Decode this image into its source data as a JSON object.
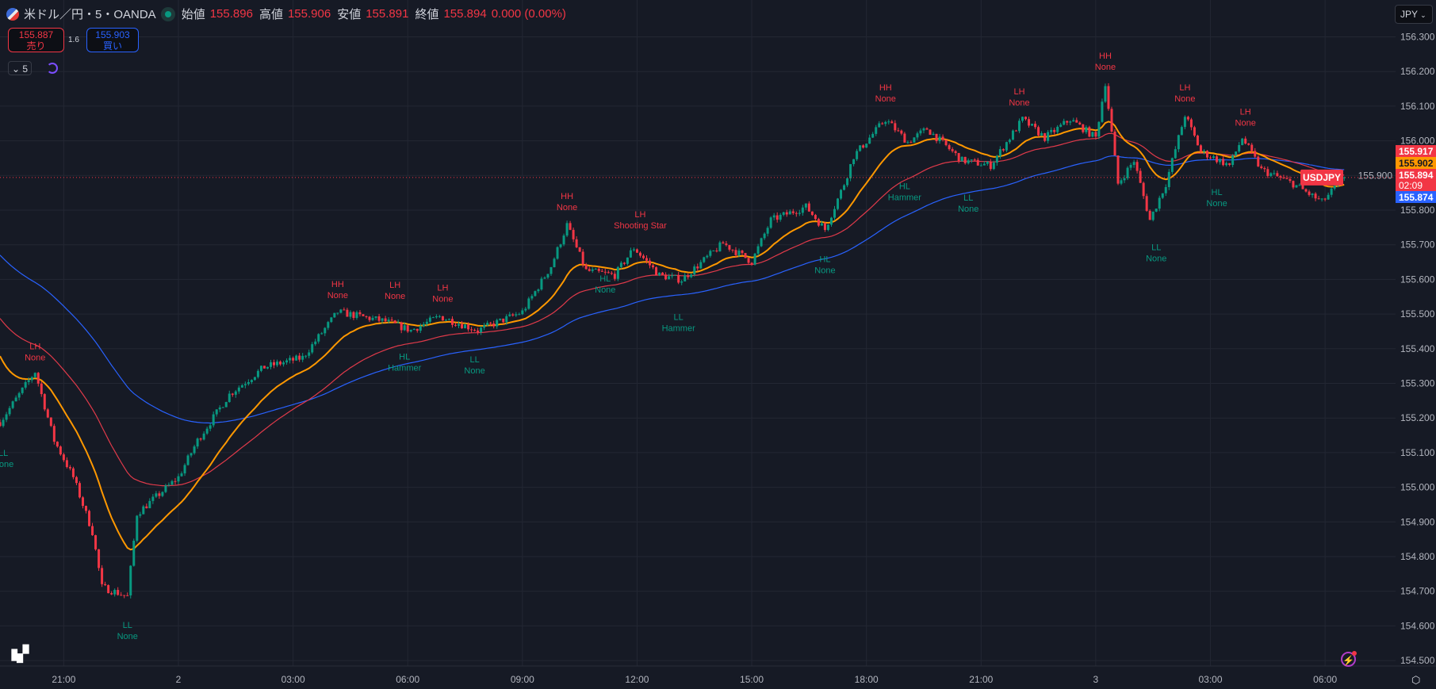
{
  "header": {
    "symbol": "米ドル／円・5・OANDA",
    "open_label": "始値",
    "open": "155.896",
    "high_label": "高値",
    "high": "155.906",
    "low_label": "安値",
    "low": "155.891",
    "close_label": "終値",
    "close": "155.894",
    "change": "0.000 (0.00%)"
  },
  "trade": {
    "sell_price": "155.887",
    "sell_label": "売り",
    "spread": "1.6",
    "buy_price": "155.903",
    "buy_label": "買い"
  },
  "timeframe": "5",
  "currency": "JPY",
  "logo": "TV",
  "colors": {
    "up": "#089981",
    "down": "#f23645",
    "ema_fast": "#ff9800",
    "ema_mid": "#e03a4a",
    "ema_slow": "#2962ff",
    "bg": "#161a25",
    "grid": "#232733"
  },
  "chart_data": {
    "type": "candlestick",
    "symbol": "USDJPY",
    "interval_minutes": 5,
    "ylim": [
      154.5,
      156.3
    ],
    "y_ticks": [
      154.5,
      154.6,
      154.7,
      154.8,
      154.9,
      155.0,
      155.1,
      155.2,
      155.3,
      155.4,
      155.5,
      155.6,
      155.7,
      155.8,
      155.9,
      156.0,
      156.1,
      156.2,
      156.3
    ],
    "x_ticks": [
      {
        "bar": -36,
        "label": "21:00"
      },
      {
        "bar": 0,
        "label": "2"
      },
      {
        "bar": 36,
        "label": "03:00"
      },
      {
        "bar": 72,
        "label": "06:00"
      },
      {
        "bar": 108,
        "label": "09:00"
      },
      {
        "bar": 144,
        "label": "12:00"
      },
      {
        "bar": 180,
        "label": "15:00"
      },
      {
        "bar": 216,
        "label": "18:00"
      },
      {
        "bar": 252,
        "label": "21:00"
      },
      {
        "bar": 288,
        "label": "3"
      },
      {
        "bar": 324,
        "label": "03:00"
      },
      {
        "bar": 360,
        "label": "06:00"
      }
    ],
    "bar_range": [
      -56,
      366
    ],
    "close_path": [
      [
        -56,
        155.188
      ],
      [
        -45,
        155.334
      ],
      [
        -39,
        155.135
      ],
      [
        -33,
        155.029
      ],
      [
        -27,
        154.871
      ],
      [
        -24,
        154.712
      ],
      [
        -16,
        154.685
      ],
      [
        -13,
        154.924
      ],
      [
        0,
        155.029
      ],
      [
        6,
        155.135
      ],
      [
        16,
        155.268
      ],
      [
        27,
        155.347
      ],
      [
        39,
        155.374
      ],
      [
        50,
        155.506
      ],
      [
        65,
        155.479
      ],
      [
        73,
        155.453
      ],
      [
        82,
        155.493
      ],
      [
        94,
        155.453
      ],
      [
        108,
        155.506
      ],
      [
        117,
        155.638
      ],
      [
        122,
        155.757
      ],
      [
        128,
        155.625
      ],
      [
        137,
        155.612
      ],
      [
        143,
        155.691
      ],
      [
        151,
        155.612
      ],
      [
        158,
        155.599
      ],
      [
        171,
        155.704
      ],
      [
        180,
        155.651
      ],
      [
        186,
        155.771
      ],
      [
        197,
        155.81
      ],
      [
        203,
        155.744
      ],
      [
        209,
        155.876
      ],
      [
        212,
        155.956
      ],
      [
        222,
        156.062
      ],
      [
        229,
        155.996
      ],
      [
        235,
        156.035
      ],
      [
        246,
        155.943
      ],
      [
        255,
        155.929
      ],
      [
        265,
        156.062
      ],
      [
        272,
        156.009
      ],
      [
        280,
        156.062
      ],
      [
        288,
        156.009
      ],
      [
        291,
        156.168
      ],
      [
        295,
        155.876
      ],
      [
        300,
        155.943
      ],
      [
        305,
        155.771
      ],
      [
        310,
        155.876
      ],
      [
        316,
        156.075
      ],
      [
        321,
        155.969
      ],
      [
        330,
        155.929
      ],
      [
        334,
        156.009
      ],
      [
        340,
        155.916
      ],
      [
        350,
        155.876
      ],
      [
        359,
        155.823
      ],
      [
        366,
        155.894
      ]
    ],
    "moving_averages": [
      {
        "name": "fast",
        "period": 20,
        "start": 155.4,
        "last": "155.902"
      },
      {
        "name": "mid",
        "period": 50,
        "start": 155.5,
        "last": "155.917"
      },
      {
        "name": "slow",
        "period": 100,
        "start": 155.68,
        "last": "155.874"
      }
    ],
    "last_price": "155.894",
    "countdown": "02:09",
    "annotations": [
      {
        "bar": -45,
        "price": 155.421,
        "kind": "high",
        "top": "LH",
        "bottom": "None"
      },
      {
        "bar": -55,
        "price": 155.114,
        "kind": "low",
        "top": "LL",
        "bottom": "None"
      },
      {
        "bar": -16,
        "price": 154.617,
        "kind": "low",
        "top": "LL",
        "bottom": "None"
      },
      {
        "bar": 50,
        "price": 155.601,
        "kind": "high",
        "top": "HH",
        "bottom": "None"
      },
      {
        "bar": 68,
        "price": 155.599,
        "kind": "high",
        "top": "LH",
        "bottom": "None"
      },
      {
        "bar": 71,
        "price": 155.392,
        "kind": "low",
        "top": "HL",
        "bottom": "Hammer"
      },
      {
        "bar": 83,
        "price": 155.591,
        "kind": "high",
        "top": "LH",
        "bottom": "None"
      },
      {
        "bar": 93,
        "price": 155.384,
        "kind": "low",
        "top": "LL",
        "bottom": "None"
      },
      {
        "bar": 122,
        "price": 155.855,
        "kind": "high",
        "top": "HH",
        "bottom": "None"
      },
      {
        "bar": 134,
        "price": 155.617,
        "kind": "low",
        "top": "HL",
        "bottom": "None"
      },
      {
        "bar": 145,
        "price": 155.802,
        "kind": "high",
        "top": "LH",
        "bottom": "Shooting Star"
      },
      {
        "bar": 157,
        "price": 155.506,
        "kind": "low",
        "top": "LL",
        "bottom": "Hammer"
      },
      {
        "bar": 203,
        "price": 155.673,
        "kind": "low",
        "top": "HL",
        "bottom": "None"
      },
      {
        "bar": 222,
        "price": 156.168,
        "kind": "high",
        "top": "HH",
        "bottom": "None"
      },
      {
        "bar": 228,
        "price": 155.884,
        "kind": "low",
        "top": "HL",
        "bottom": "Hammer"
      },
      {
        "bar": 248,
        "price": 155.85,
        "kind": "low",
        "top": "LL",
        "bottom": "None"
      },
      {
        "bar": 264,
        "price": 156.157,
        "kind": "high",
        "top": "LH",
        "bottom": "None"
      },
      {
        "bar": 291,
        "price": 156.26,
        "kind": "high",
        "top": "HH",
        "bottom": "None"
      },
      {
        "bar": 307,
        "price": 155.707,
        "kind": "low",
        "top": "LL",
        "bottom": "None"
      },
      {
        "bar": 316,
        "price": 156.168,
        "kind": "high",
        "top": "LH",
        "bottom": "None"
      },
      {
        "bar": 326,
        "price": 155.866,
        "kind": "low",
        "top": "HL",
        "bottom": "None"
      },
      {
        "bar": 335,
        "price": 156.099,
        "kind": "high",
        "top": "LH",
        "bottom": "None"
      }
    ]
  }
}
